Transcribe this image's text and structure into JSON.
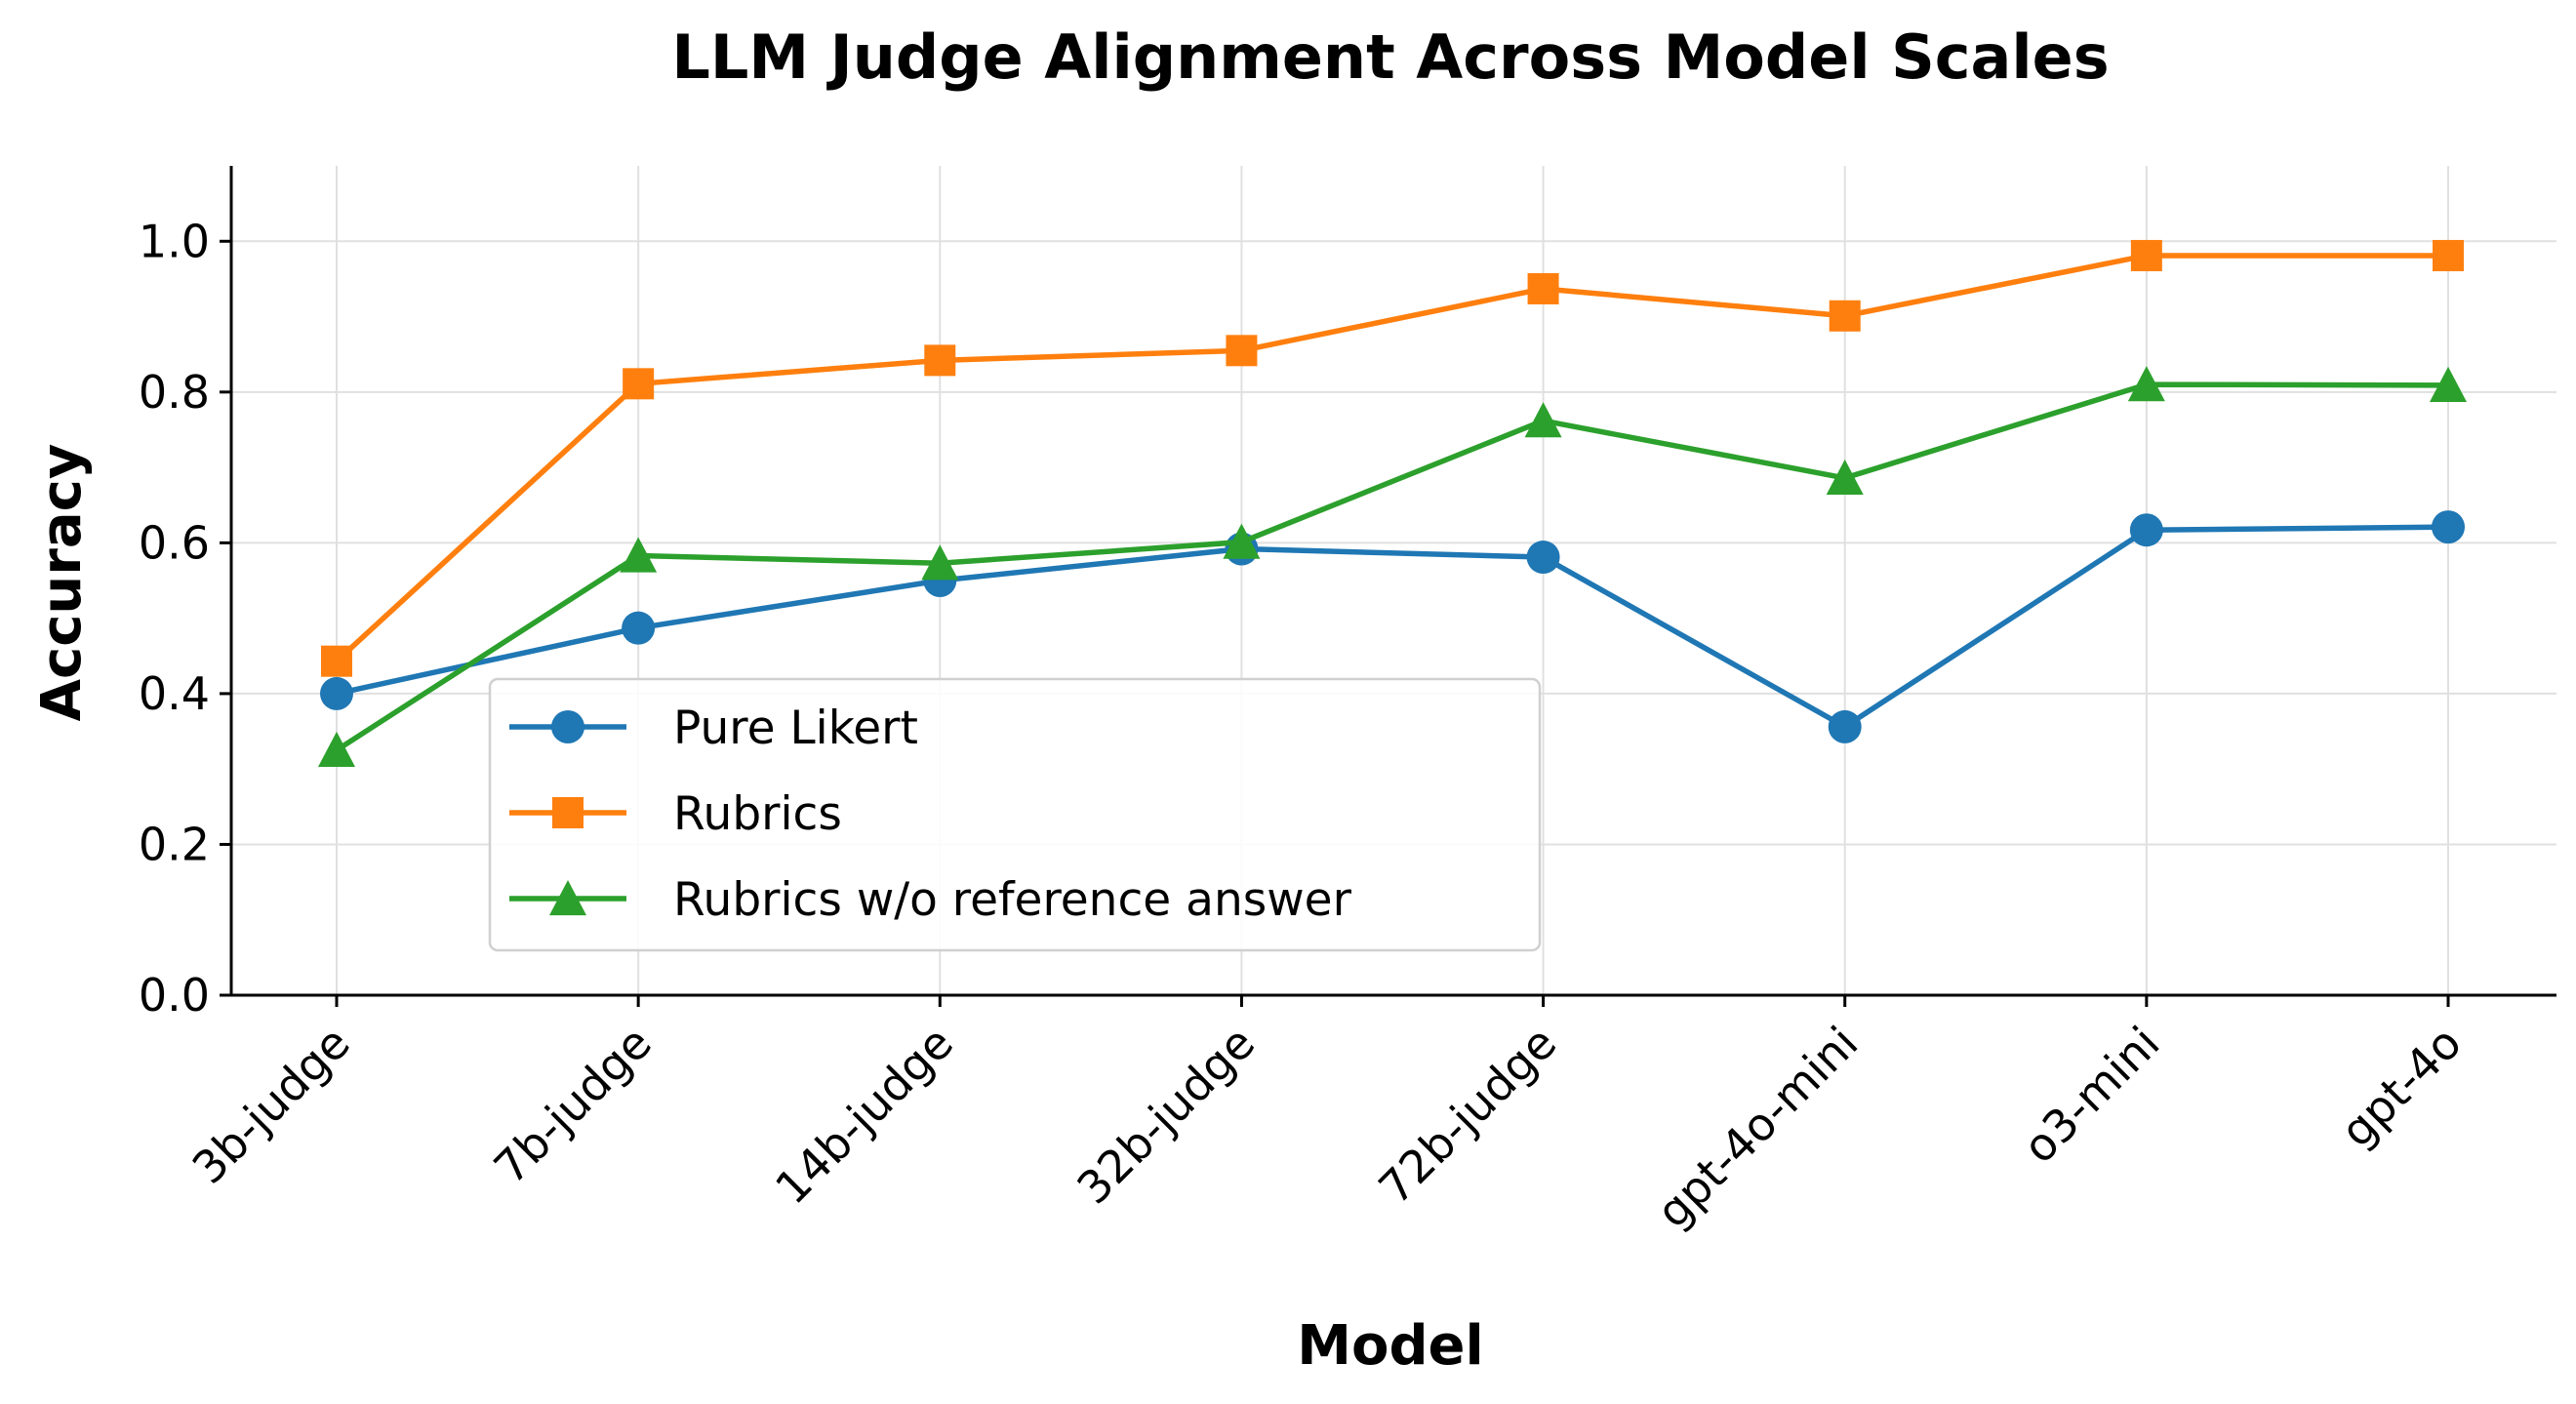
{
  "chart_data": {
    "type": "line",
    "title": "LLM Judge Alignment Across Model Scales",
    "xlabel": "Model",
    "ylabel": "Accuracy",
    "categories": [
      "3b-judge",
      "7b-judge",
      "14b-judge",
      "32b-judge",
      "72b-judge",
      "gpt-4o-mini",
      "o3-mini",
      "gpt-4o"
    ],
    "ylim": [
      0,
      1.1
    ],
    "yticks": [
      "0.0",
      "0.2",
      "0.4",
      "0.6",
      "0.8",
      "1.0"
    ],
    "grid": true,
    "legend_position": "lower-center",
    "series": [
      {
        "name": "Pure Likert",
        "color": "#1f77b4",
        "marker": "circle",
        "values": [
          0.4,
          0.487,
          0.55,
          0.592,
          0.581,
          0.356,
          0.617,
          0.621
        ]
      },
      {
        "name": "Rubrics",
        "color": "#ff7f0e",
        "marker": "square",
        "values": [
          0.443,
          0.811,
          0.842,
          0.855,
          0.937,
          0.901,
          0.981,
          0.981
        ]
      },
      {
        "name": "Rubrics w/o reference answer",
        "color": "#2ca02c",
        "marker": "triangle",
        "values": [
          0.325,
          0.583,
          0.573,
          0.601,
          0.762,
          0.686,
          0.81,
          0.809
        ]
      }
    ]
  }
}
